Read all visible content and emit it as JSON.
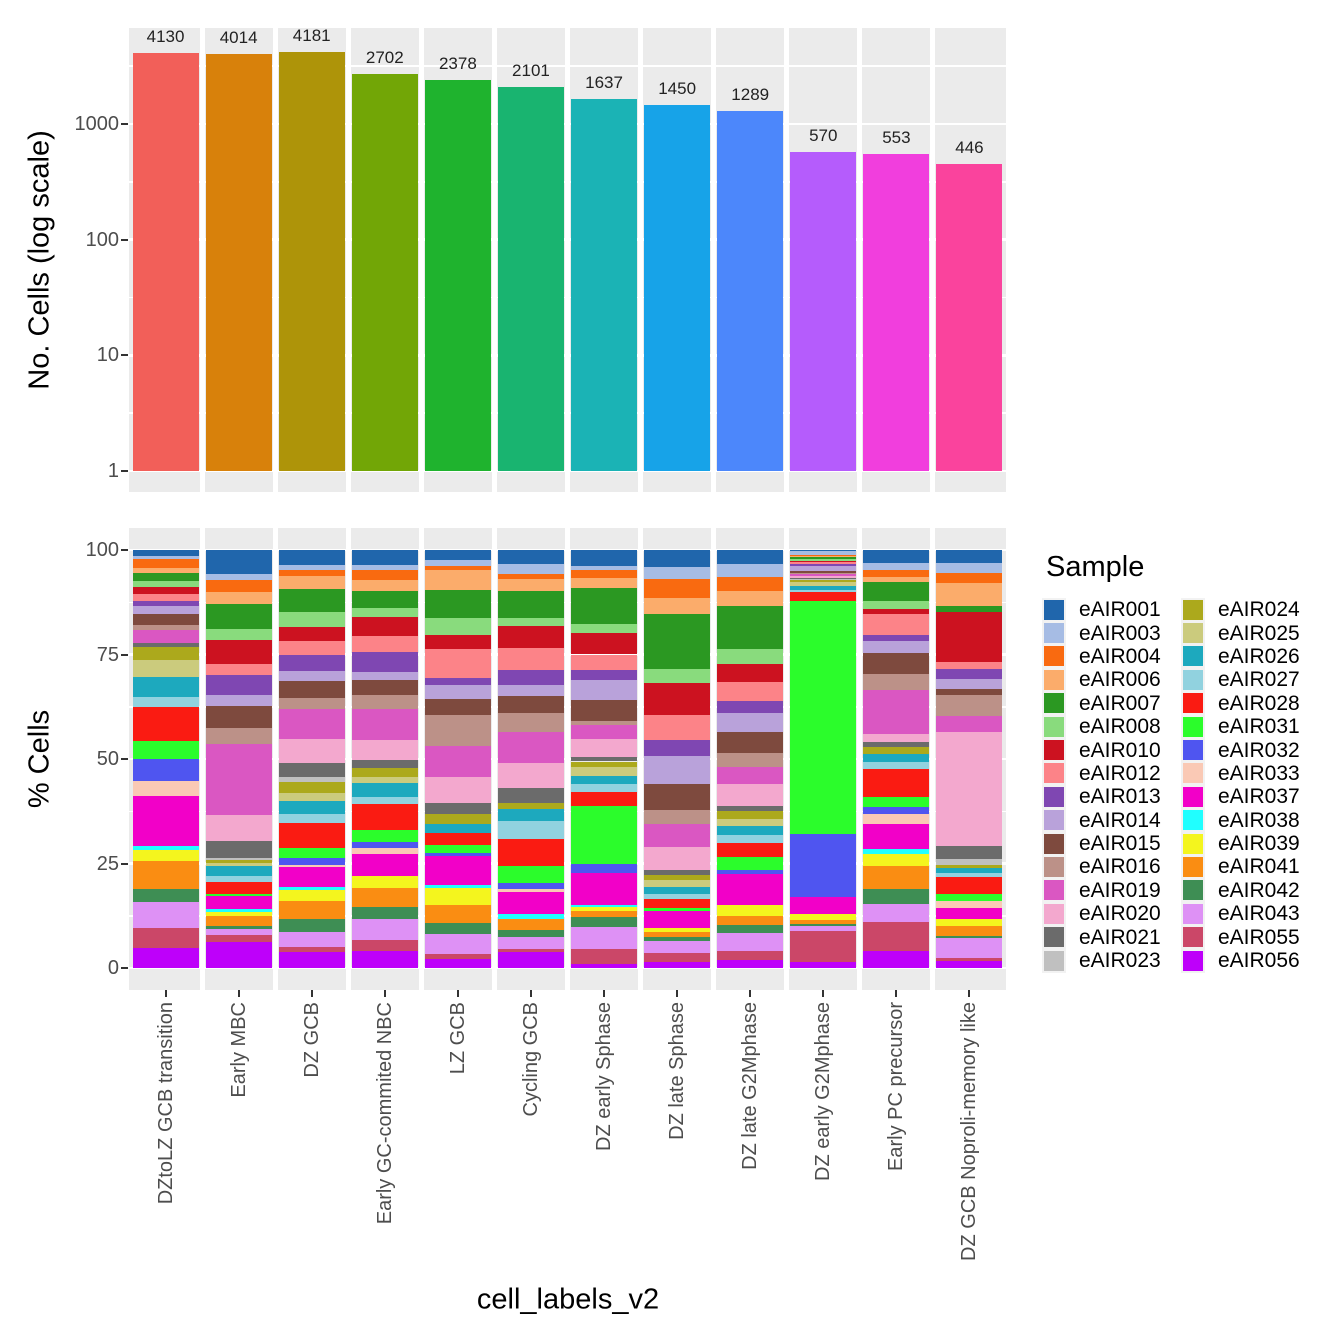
{
  "figure": {
    "panel_background": "#EBEBEB",
    "grid_color": "#FFFFFF",
    "tick_color": "#333333",
    "tick_label_color": "#4D4D4D",
    "text_color": "#000000"
  },
  "chart_data": [
    {
      "type": "bar",
      "ylabel": "No. Cells (log scale)",
      "yscale": "log10",
      "yticks": [
        1,
        10,
        100,
        1000
      ],
      "ylim": [
        1,
        5600
      ],
      "grid": true,
      "categories": [
        "DZtoLZ GCB transition",
        "Early MBC",
        "DZ GCB",
        "Early GC-commited NBC",
        "LZ GCB",
        "Cycling GCB",
        "DZ early  Sphase",
        "DZ late Sphase",
        "DZ late G2Mphase",
        "DZ early G2Mphase",
        "Early PC precursor",
        "DZ GCB Noproli-memory like"
      ],
      "values": [
        4130,
        4014,
        4181,
        2702,
        2378,
        2101,
        1637,
        1450,
        1289,
        570,
        553,
        446
      ],
      "bar_colors": [
        "#F25F59",
        "#D8810B",
        "#AE9409",
        "#72A606",
        "#1FB32E",
        "#19B470",
        "#1BB3B5",
        "#17A3E8",
        "#4C87FB",
        "#B55CFC",
        "#F13EDD",
        "#FA439D"
      ]
    },
    {
      "type": "bar",
      "stacked": true,
      "units": "percent",
      "ylabel": "% Cells",
      "xlabel": "cell_labels_v2",
      "yticks": [
        0,
        25,
        50,
        75,
        100
      ],
      "ylim": [
        0,
        100
      ],
      "grid": true,
      "legend_title": "Sample",
      "legend_position": "right",
      "categories": [
        "DZtoLZ GCB transition",
        "Early MBC",
        "DZ GCB",
        "Early GC-commited NBC",
        "LZ GCB",
        "Cycling GCB",
        "DZ early  Sphase",
        "DZ late Sphase",
        "DZ late G2Mphase",
        "DZ early G2Mphase",
        "Early PC precursor",
        "DZ GCB Noproli-memory like"
      ],
      "series": [
        {
          "name": "eAIR001",
          "color": "#2066AC",
          "values": [
            1.4,
            5.8,
            3.8,
            3.6,
            2.5,
            3.4,
            3.8,
            4.0,
            3.4,
            0.3,
            3.0,
            3.2
          ]
        },
        {
          "name": "eAIR003",
          "color": "#A6BCE4",
          "values": [
            0.8,
            1.4,
            1.3,
            1.3,
            1.3,
            2.4,
            1.0,
            2.9,
            3.0,
            1.0,
            1.8,
            2.4
          ]
        },
        {
          "name": "eAIR004",
          "color": "#F96A10",
          "values": [
            2.1,
            2.9,
            1.4,
            2.4,
            1.0,
            1.2,
            1.9,
            4.4,
            3.5,
            0.2,
            1.7,
            2.4
          ]
        },
        {
          "name": "eAIR006",
          "color": "#FBAC6B",
          "values": [
            1.3,
            2.9,
            3.3,
            2.5,
            4.8,
            2.9,
            2.4,
            3.8,
            3.6,
            0.3,
            1.2,
            5.5
          ]
        },
        {
          "name": "eAIR007",
          "color": "#2B9822",
          "values": [
            1.9,
            5.8,
            5.8,
            4.1,
            6.7,
            6.3,
            8.7,
            13.2,
            10.1,
            0.5,
            4.4,
            1.3
          ]
        },
        {
          "name": "eAIR008",
          "color": "#89DB7D",
          "values": [
            1.4,
            2.8,
            3.6,
            2.1,
            4.0,
            2.1,
            2.1,
            3.2,
            3.6,
            0.3,
            2.0,
            0
          ]
        },
        {
          "name": "eAIR010",
          "color": "#CC1220",
          "values": [
            1.6,
            5.6,
            3.6,
            4.5,
            3.4,
            5.1,
            5.1,
            7.7,
            4.4,
            0.3,
            1.2,
            12.1
          ]
        },
        {
          "name": "eAIR012",
          "color": "#FC8388",
          "values": [
            1.7,
            2.8,
            3.6,
            4.0,
            7.1,
            5.4,
            3.8,
            6.0,
            4.5,
            0.6,
            4.9,
            1.6
          ]
        },
        {
          "name": "eAIR013",
          "color": "#7F47B2",
          "values": [
            1.3,
            4.8,
            4.0,
            4.8,
            1.6,
            3.6,
            2.2,
            3.7,
            2.9,
            0.3,
            1.4,
            2.4
          ]
        },
        {
          "name": "eAIR014",
          "color": "#B9A2DA",
          "values": [
            1.9,
            2.6,
            2.4,
            1.8,
            3.2,
            2.6,
            4.8,
            6.6,
            4.5,
            1.4,
            3.0,
            2.4
          ]
        },
        {
          "name": "eAIR015",
          "color": "#7E4A3E",
          "values": [
            2.6,
            5.3,
            4.2,
            3.6,
            4.0,
            4.1,
            5.1,
            6.3,
            5.0,
            0.4,
            4.8,
            1.3
          ]
        },
        {
          "name": "eAIR016",
          "color": "#BC9188",
          "values": [
            1.2,
            3.6,
            2.9,
            3.3,
            7.5,
            4.4,
            1.0,
            3.3,
            3.5,
            0.3,
            4.0,
            5.0
          ]
        },
        {
          "name": "eAIR019",
          "color": "#DA57C2",
          "values": [
            3.0,
            17.1,
            7.5,
            7.4,
            7.3,
            7.5,
            3.4,
            5.5,
            4.0,
            0.5,
            10.3,
            4.0
          ]
        },
        {
          "name": "eAIR020",
          "color": "#F3A8CE",
          "values": [
            0,
            6.3,
            5.9,
            4.8,
            6.3,
            5.9,
            4.3,
            5.4,
            5.2,
            0.4,
            1.9,
            27.2
          ]
        },
        {
          "name": "eAIR021",
          "color": "#6B6B6B",
          "values": [
            1.1,
            4.0,
            3.6,
            1.9,
            2.6,
            3.7,
            1.0,
            1.1,
            1.3,
            0.3,
            1.3,
            3.2
          ]
        },
        {
          "name": "eAIR023",
          "color": "#C0C0C0",
          "values": [
            0,
            0.4,
            1.2,
            0,
            0,
            0,
            0,
            0,
            0,
            0.2,
            0,
            1.3
          ]
        },
        {
          "name": "eAIR024",
          "color": "#ACA91C",
          "values": [
            3.0,
            0.8,
            2.8,
            2.2,
            2.4,
            1.4,
            1.3,
            1.3,
            1.8,
            0.6,
            1.6,
            0.8
          ]
        },
        {
          "name": "eAIR025",
          "color": "#CBCB7D",
          "values": [
            4.0,
            0.8,
            2.0,
            1.6,
            0,
            0,
            2.1,
            1.6,
            1.9,
            0.8,
            0,
            0
          ]
        },
        {
          "name": "eAIR026",
          "color": "#1DA9BE",
          "values": [
            4.8,
            2.4,
            3.2,
            3.2,
            2.1,
            2.8,
            1.9,
            1.7,
            2.1,
            1.1,
            1.9,
            1.1
          ]
        },
        {
          "name": "eAIR027",
          "color": "#91D2DF",
          "values": [
            2.6,
            1.4,
            2.4,
            1.7,
            0,
            4.4,
            2.1,
            1.2,
            1.9,
            0.5,
            1.6,
            1.0
          ]
        },
        {
          "name": "eAIR028",
          "color": "#FA1B12",
          "values": [
            8.1,
            2.9,
            6.3,
            6.2,
            2.9,
            6.5,
            3.2,
            2.1,
            3.2,
            2.1,
            6.8,
            4.0
          ]
        },
        {
          "name": "eAIR031",
          "color": "#2BFD2B",
          "values": [
            4.2,
            0.3,
            2.4,
            3.0,
            1.9,
            4.0,
            14.0,
            0.8,
            3.2,
            56.8,
            2.4,
            1.8
          ]
        },
        {
          "name": "eAIR032",
          "color": "#4F55F0",
          "values": [
            5.3,
            0,
            1.7,
            1.3,
            0.8,
            1.3,
            2.1,
            0,
            1.0,
            15.3,
            1.5,
            0
          ]
        },
        {
          "name": "eAIR033",
          "color": "#FAC9B5",
          "values": [
            3.6,
            0,
            0.6,
            1.6,
            0,
            0.9,
            0,
            0,
            0,
            0,
            2.4,
            1.6
          ]
        },
        {
          "name": "eAIR037",
          "color": "#F200C8",
          "values": [
            11.9,
            3.2,
            5.1,
            5.1,
            6.8,
            5.1,
            7.6,
            4.0,
            7.4,
            4.2,
            6.1,
            2.7
          ]
        },
        {
          "name": "eAIR038",
          "color": "#20FFFF",
          "values": [
            1.0,
            0.8,
            0.6,
            0,
            0.8,
            1.3,
            0.5,
            0,
            0,
            0,
            1.0,
            0
          ]
        },
        {
          "name": "eAIR039",
          "color": "#F4F51E",
          "values": [
            2.6,
            0.8,
            2.9,
            3.0,
            4.1,
            0,
            1.0,
            1.0,
            2.7,
            1.3,
            2.9,
            1.6
          ]
        },
        {
          "name": "eAIR041",
          "color": "#FA8D12",
          "values": [
            6.9,
            2.5,
            4.4,
            4.5,
            4.4,
            2.6,
            1.3,
            1.2,
            2.2,
            1.2,
            5.5,
            2.4
          ]
        },
        {
          "name": "eAIR042",
          "color": "#3E8E54",
          "values": [
            3.0,
            0.6,
            3.3,
            2.9,
            2.6,
            1.8,
            2.6,
            0.9,
            1.7,
            0.3,
            3.6,
            0.6
          ]
        },
        {
          "name": "eAIR043",
          "color": "#DE91F5",
          "values": [
            6.3,
            1.4,
            3.8,
            5.0,
            4.8,
            2.7,
            5.1,
            2.9,
            4.4,
            1.2,
            4.3,
            4.6
          ]
        },
        {
          "name": "eAIR055",
          "color": "#CB4768",
          "values": [
            4.6,
            1.7,
            1.3,
            2.6,
            1.1,
            0.8,
            3.6,
            2.0,
            2.1,
            7.7,
            6.8,
            0.8
          ]
        },
        {
          "name": "eAIR056",
          "color": "#BE00FA",
          "values": [
            4.9,
            6.3,
            3.9,
            4.1,
            2.2,
            3.8,
            1.0,
            1.5,
            2.0,
            1.4,
            4.1,
            1.7
          ]
        }
      ]
    }
  ]
}
